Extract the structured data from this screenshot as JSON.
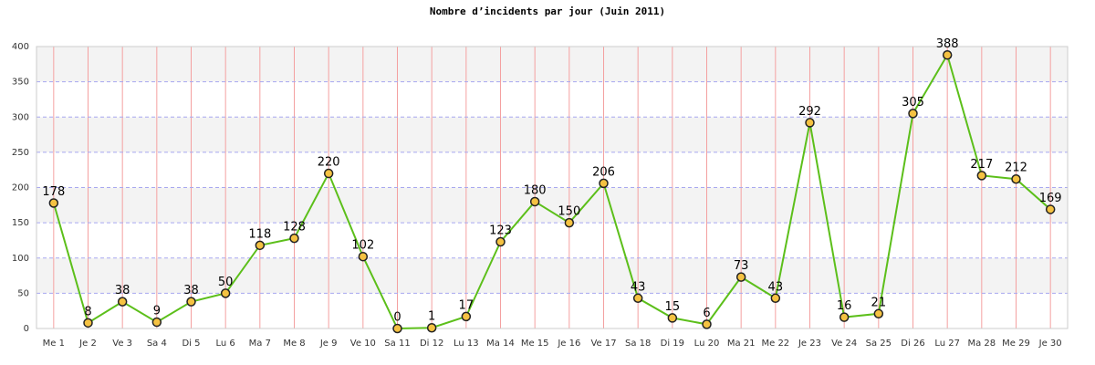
{
  "chart_data": {
    "type": "line",
    "title": "Nombre d’incidents par jour (Juin 2011)",
    "categories": [
      "Me 1",
      "Je 2",
      "Ve 3",
      "Sa 4",
      "Di 5",
      "Lu 6",
      "Ma 7",
      "Me 8",
      "Je 9",
      "Ve 10",
      "Sa 11",
      "Di 12",
      "Lu 13",
      "Ma 14",
      "Me 15",
      "Je 16",
      "Ve 17",
      "Sa 18",
      "Di 19",
      "Lu 20",
      "Ma 21",
      "Me 22",
      "Je 23",
      "Ve 24",
      "Sa 25",
      "Di 26",
      "Lu 27",
      "Ma 28",
      "Me 29",
      "Je 30"
    ],
    "values": [
      178,
      8,
      38,
      9,
      38,
      50,
      118,
      128,
      220,
      102,
      0,
      1,
      17,
      123,
      180,
      150,
      206,
      43,
      15,
      6,
      73,
      43,
      292,
      16,
      21,
      305,
      388,
      217,
      212,
      169
    ],
    "color": "#5cbf1a",
    "marker_color": "#f5c242",
    "ylim": [
      0,
      400
    ],
    "yticks": [
      0,
      50,
      100,
      150,
      200,
      250,
      300,
      350,
      400
    ],
    "grid": true
  }
}
